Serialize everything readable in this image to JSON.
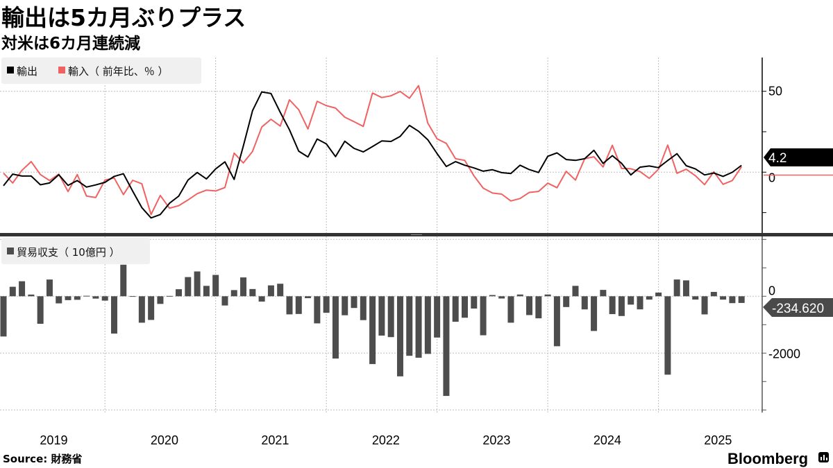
{
  "header": {
    "title": "輸出は5カ月ぶりプラス",
    "subtitle": "対米は6カ月連続減"
  },
  "footer": {
    "source": "Source: 財務省",
    "logo": "Bloomberg"
  },
  "colors": {
    "exports": "#000000",
    "imports": "#f06262",
    "balance": "#4d4d4d",
    "grid": "#bdbdbd",
    "legend_bg": "#f0f0f0"
  },
  "chart_data": [
    {
      "type": "line",
      "legend": [
        {
          "label": "輸出",
          "color": "#000000"
        },
        {
          "label": "輸入（ 前年比、％ ）",
          "color": "#f06262"
        }
      ],
      "legend_placement": "top-left",
      "y_axis_side": "right",
      "ylim": [
        -38,
        70
      ],
      "y_ticks": [
        50,
        25,
        0,
        -25
      ],
      "y_tick_labels": [
        "50",
        "",
        "0",
        ""
      ],
      "grid": true,
      "last_value_label": "4.2",
      "x": [
        "2019-01",
        "2019-02",
        "2019-03",
        "2019-04",
        "2019-05",
        "2019-06",
        "2019-07",
        "2019-08",
        "2019-09",
        "2019-10",
        "2019-11",
        "2019-12",
        "2020-01",
        "2020-02",
        "2020-03",
        "2020-04",
        "2020-05",
        "2020-06",
        "2020-07",
        "2020-08",
        "2020-09",
        "2020-10",
        "2020-11",
        "2020-12",
        "2021-01",
        "2021-02",
        "2021-03",
        "2021-04",
        "2021-05",
        "2021-06",
        "2021-07",
        "2021-08",
        "2021-09",
        "2021-10",
        "2021-11",
        "2021-12",
        "2022-01",
        "2022-02",
        "2022-03",
        "2022-04",
        "2022-05",
        "2022-06",
        "2022-07",
        "2022-08",
        "2022-09",
        "2022-10",
        "2022-11",
        "2022-12",
        "2023-01",
        "2023-02",
        "2023-03",
        "2023-04",
        "2023-05",
        "2023-06",
        "2023-07",
        "2023-08",
        "2023-09",
        "2023-10",
        "2023-11",
        "2023-12",
        "2024-01",
        "2024-02",
        "2024-03",
        "2024-04",
        "2024-05",
        "2024-06",
        "2024-07",
        "2024-08",
        "2024-09",
        "2024-10",
        "2024-11",
        "2024-12",
        "2025-01",
        "2025-02",
        "2025-03",
        "2025-04",
        "2025-05",
        "2025-06",
        "2025-07",
        "2025-08",
        "2025-09"
      ],
      "series": [
        {
          "name": "輸出",
          "values": [
            -8.4,
            -1.2,
            -2.4,
            -2.4,
            -7.8,
            -6.7,
            -1.6,
            -8.2,
            -5.2,
            -9.2,
            -7.9,
            -6.3,
            -2.6,
            -1.0,
            -11.7,
            -21.9,
            -28.3,
            -26.2,
            -19.2,
            -14.8,
            -4.9,
            -0.2,
            -4.2,
            2.0,
            6.4,
            -4.5,
            16.1,
            38.0,
            49.6,
            48.6,
            37.0,
            26.2,
            13.0,
            9.4,
            20.5,
            17.5,
            9.6,
            19.1,
            14.7,
            12.5,
            15.8,
            19.3,
            19.0,
            22.1,
            28.9,
            25.3,
            20.0,
            11.5,
            3.5,
            6.5,
            4.3,
            2.6,
            0.6,
            1.5,
            -0.3,
            -0.8,
            4.3,
            1.6,
            -0.2,
            9.8,
            11.9,
            7.8,
            7.3,
            8.3,
            13.5,
            5.4,
            10.2,
            5.5,
            -1.7,
            3.1,
            3.8,
            2.8,
            7.2,
            11.4,
            4.0,
            2.0,
            -1.7,
            -0.5,
            -2.6,
            -0.1,
            4.2
          ]
        },
        {
          "name": "輸入（ 前年比、％ ）",
          "values": [
            -0.6,
            -6.7,
            1.1,
            6.5,
            -1.5,
            -5.2,
            -1.2,
            -12.0,
            -1.5,
            -14.8,
            -15.7,
            -4.9,
            -3.6,
            -13.9,
            -5.0,
            -7.2,
            -26.2,
            -14.4,
            -22.3,
            -20.7,
            -17.2,
            -13.3,
            -11.1,
            -11.6,
            -9.5,
            11.8,
            5.7,
            12.8,
            27.9,
            32.7,
            28.5,
            44.7,
            38.6,
            26.7,
            43.8,
            41.1,
            39.6,
            34.0,
            31.2,
            28.3,
            48.9,
            46.1,
            47.2,
            49.9,
            45.7,
            53.5,
            30.3,
            20.6,
            17.8,
            8.3,
            7.3,
            -2.3,
            -9.9,
            -12.9,
            -13.6,
            -17.8,
            -16.3,
            -12.5,
            -11.9,
            -6.8,
            -9.6,
            0.5,
            -4.9,
            8.3,
            9.5,
            3.2,
            16.6,
            2.3,
            2.1,
            0.4,
            -3.8,
            1.8,
            16.7,
            -0.7,
            1.8,
            -2.2,
            -7.7,
            0.2,
            -7.5,
            -5.2,
            3.3
          ]
        }
      ]
    },
    {
      "type": "bar",
      "legend": [
        {
          "label": "貿易収支（ 10億円 ）",
          "color": "#4d4d4d"
        }
      ],
      "legend_placement": "top-left",
      "y_axis_side": "right",
      "ylim": [
        -4000,
        2000
      ],
      "y_ticks": [
        2000,
        1000,
        0,
        -1000,
        -2000,
        -3000,
        -4000
      ],
      "y_tick_labels": [
        "",
        "",
        "0",
        "",
        "-2000",
        "",
        ""
      ],
      "grid": true,
      "last_value_label": "-234.620",
      "x_tick_labels": [
        "2019",
        "2020",
        "2021",
        "2022",
        "2023",
        "2024",
        "2025"
      ],
      "series": [
        {
          "name": "貿易収支（ 10億円 ）",
          "values": [
            -1415,
            334,
            528,
            60,
            -968,
            589,
            -250,
            -136,
            -124,
            17,
            -82,
            -153,
            -1313,
            1110,
            5,
            -930,
            -833,
            -269,
            11,
            248,
            675,
            873,
            366,
            751,
            -325,
            217,
            663,
            255,
            -187,
            383,
            441,
            -637,
            -623,
            -67,
            -954,
            -582,
            -2191,
            -668,
            -412,
            -839,
            -2385,
            -1384,
            -1437,
            -2817,
            -2094,
            -2162,
            -2027,
            -1452,
            -3506,
            -897,
            -755,
            -432,
            -1372,
            43,
            -78,
            -930,
            62,
            -662,
            -776,
            62,
            -1758,
            -379,
            366,
            -462,
            -1221,
            224,
            -628,
            -695,
            -294,
            -461,
            -117,
            130,
            -2758,
            590,
            559,
            -116,
            -638,
            153,
            -118,
            -242,
            -234.62
          ]
        }
      ]
    }
  ]
}
